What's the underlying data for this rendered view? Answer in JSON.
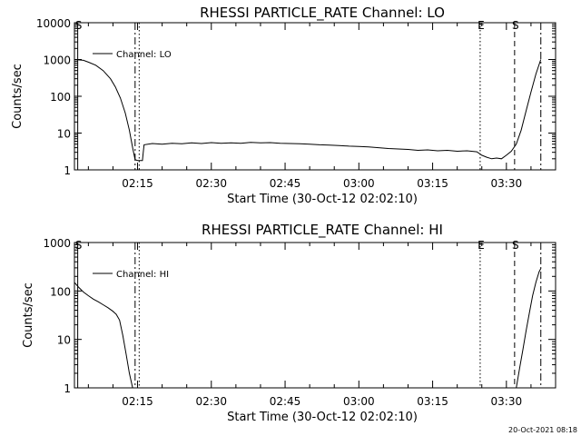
{
  "stamp": "20-Oct-2021 08:18",
  "x_tick_labels": [
    "02:15",
    "02:30",
    "02:45",
    "03:00",
    "03:15",
    "03:30"
  ],
  "markers": [
    {
      "label": "S",
      "time": "02:02:50",
      "style": "solid"
    },
    {
      "label": "",
      "time": "02:14:30",
      "style": "dashdot"
    },
    {
      "label": "",
      "time": "02:15:20",
      "style": "dot"
    },
    {
      "label": "E",
      "time": "03:24:40",
      "style": "dot"
    },
    {
      "label": "S",
      "time": "03:31:40",
      "style": "dash"
    },
    {
      "label": "",
      "time": "03:37:00",
      "style": "dashdot"
    }
  ],
  "chart_data": [
    {
      "type": "line",
      "title": "RHESSI PARTICLE_RATE Channel: LO",
      "xlabel": "Start Time (30-Oct-12 02:02:10)",
      "ylabel": "Counts/sec",
      "yscale": "log",
      "ylim": [
        1,
        10000
      ],
      "y_tick_labels": [
        "10000",
        "1000",
        "100",
        "10",
        "1"
      ],
      "xlim": [
        "02:02:10",
        "03:40:00"
      ],
      "legend": "top-left",
      "series": [
        {
          "name": "Channel: LO",
          "points": [
            [
              "02:02:10",
              1000
            ],
            [
              "02:04:00",
              950
            ],
            [
              "02:05:00",
              850
            ],
            [
              "02:06:30",
              700
            ],
            [
              "02:08:00",
              500
            ],
            [
              "02:09:30",
              300
            ],
            [
              "02:10:30",
              180
            ],
            [
              "02:11:30",
              90
            ],
            [
              "02:12:30",
              35
            ],
            [
              "02:13:20",
              12
            ],
            [
              "02:14:00",
              4
            ],
            [
              "02:14:30",
              1.9
            ],
            [
              "02:15:00",
              1.8
            ],
            [
              "02:16:00",
              1.8
            ],
            [
              "02:16:10",
              3
            ],
            [
              "02:16:20",
              4.8
            ],
            [
              "02:18:00",
              5.2
            ],
            [
              "02:20:00",
              5.0
            ],
            [
              "02:22:00",
              5.3
            ],
            [
              "02:24:00",
              5.1
            ],
            [
              "02:26:00",
              5.4
            ],
            [
              "02:28:00",
              5.2
            ],
            [
              "02:30:00",
              5.5
            ],
            [
              "02:32:00",
              5.3
            ],
            [
              "02:34:00",
              5.4
            ],
            [
              "02:36:00",
              5.3
            ],
            [
              "02:38:00",
              5.6
            ],
            [
              "02:40:00",
              5.4
            ],
            [
              "02:42:00",
              5.5
            ],
            [
              "02:44:00",
              5.3
            ],
            [
              "02:46:00",
              5.2
            ],
            [
              "02:48:00",
              5.1
            ],
            [
              "02:50:00",
              5.0
            ],
            [
              "02:52:00",
              4.8
            ],
            [
              "02:54:00",
              4.7
            ],
            [
              "02:56:00",
              4.6
            ],
            [
              "02:58:00",
              4.4
            ],
            [
              "03:00:00",
              4.3
            ],
            [
              "03:02:00",
              4.2
            ],
            [
              "03:04:00",
              4.0
            ],
            [
              "03:06:00",
              3.8
            ],
            [
              "03:08:00",
              3.7
            ],
            [
              "03:10:00",
              3.6
            ],
            [
              "03:12:00",
              3.4
            ],
            [
              "03:14:00",
              3.5
            ],
            [
              "03:16:00",
              3.3
            ],
            [
              "03:18:00",
              3.4
            ],
            [
              "03:20:00",
              3.2
            ],
            [
              "03:22:00",
              3.3
            ],
            [
              "03:24:00",
              3.1
            ],
            [
              "03:25:00",
              2.5
            ],
            [
              "03:26:00",
              2.2
            ],
            [
              "03:27:00",
              2.0
            ],
            [
              "03:28:00",
              2.1
            ],
            [
              "03:29:00",
              2.0
            ],
            [
              "03:30:00",
              2.5
            ],
            [
              "03:31:00",
              3.2
            ],
            [
              "03:32:00",
              5
            ],
            [
              "03:33:00",
              12
            ],
            [
              "03:34:00",
              40
            ],
            [
              "03:35:00",
              130
            ],
            [
              "03:36:00",
              400
            ],
            [
              "03:37:00",
              1000
            ]
          ]
        }
      ]
    },
    {
      "type": "line",
      "title": "RHESSI PARTICLE_RATE Channel: HI",
      "xlabel": "Start Time (30-Oct-12 02:02:10)",
      "ylabel": "Counts/sec",
      "yscale": "log",
      "ylim": [
        1,
        1000
      ],
      "y_tick_labels": [
        "1000",
        "100",
        "10",
        "1"
      ],
      "xlim": [
        "02:02:10",
        "03:40:00"
      ],
      "legend": "top-left",
      "series": [
        {
          "name": "Channel: HI",
          "points": [
            [
              "02:02:10",
              150
            ],
            [
              "02:03:00",
              120
            ],
            [
              "02:04:00",
              95
            ],
            [
              "02:05:00",
              80
            ],
            [
              "02:06:00",
              68
            ],
            [
              "02:07:00",
              60
            ],
            [
              "02:08:00",
              52
            ],
            [
              "02:09:00",
              45
            ],
            [
              "02:10:00",
              38
            ],
            [
              "02:10:40",
              33
            ],
            [
              "02:11:20",
              25
            ],
            [
              "02:12:00",
              12
            ],
            [
              "02:12:40",
              5
            ],
            [
              "02:13:20",
              2
            ],
            [
              "02:14:00",
              1
            ],
            [
              null,
              null
            ],
            [
              "03:32:00",
              1
            ],
            [
              "03:32:40",
              2.5
            ],
            [
              "03:33:20",
              6
            ],
            [
              "03:34:00",
              15
            ],
            [
              "03:34:40",
              35
            ],
            [
              "03:35:20",
              80
            ],
            [
              "03:36:00",
              150
            ],
            [
              "03:36:40",
              250
            ],
            [
              "03:37:00",
              290
            ]
          ]
        }
      ]
    }
  ]
}
